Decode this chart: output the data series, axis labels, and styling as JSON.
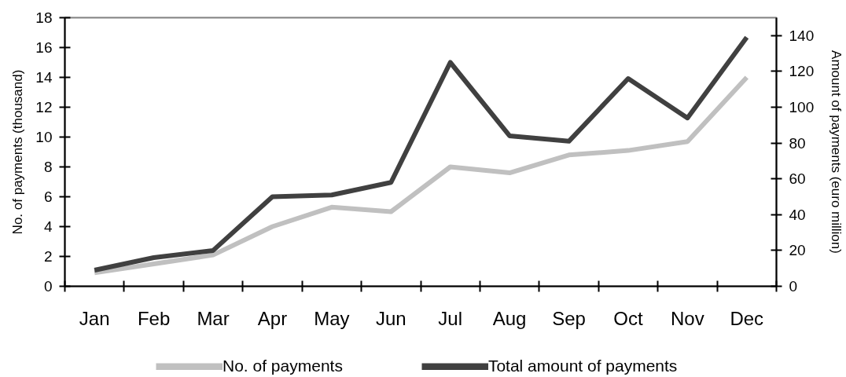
{
  "chart_data": {
    "type": "line",
    "categories": [
      "Jan",
      "Feb",
      "Mar",
      "Apr",
      "May",
      "Jun",
      "Jul",
      "Aug",
      "Sep",
      "Oct",
      "Nov",
      "Dec"
    ],
    "ylabel": "No. of payments (thousand)",
    "y2label": "Amount of payments (euro million)",
    "ylim": [
      0,
      18
    ],
    "yticks": [
      0,
      2,
      4,
      6,
      8,
      10,
      12,
      14,
      16,
      18
    ],
    "y2lim": [
      0,
      150
    ],
    "y2ticks": [
      0,
      20,
      40,
      60,
      80,
      100,
      120,
      140
    ],
    "series": [
      {
        "name": "No. of payments",
        "color": "#c0c0c0",
        "values": [
          0.9,
          1.5,
          2.1,
          4.0,
          5.3,
          5.0,
          8.0,
          7.6,
          8.8,
          9.1,
          9.7,
          14.0
        ]
      },
      {
        "name": "Total amount of payments",
        "color": "#404040",
        "axis": "y2",
        "values": [
          9,
          16,
          20,
          50,
          51,
          58,
          125,
          84,
          81,
          116,
          94,
          139
        ]
      }
    ],
    "legend": "bottom",
    "grid": false,
    "line_style": "solid"
  }
}
